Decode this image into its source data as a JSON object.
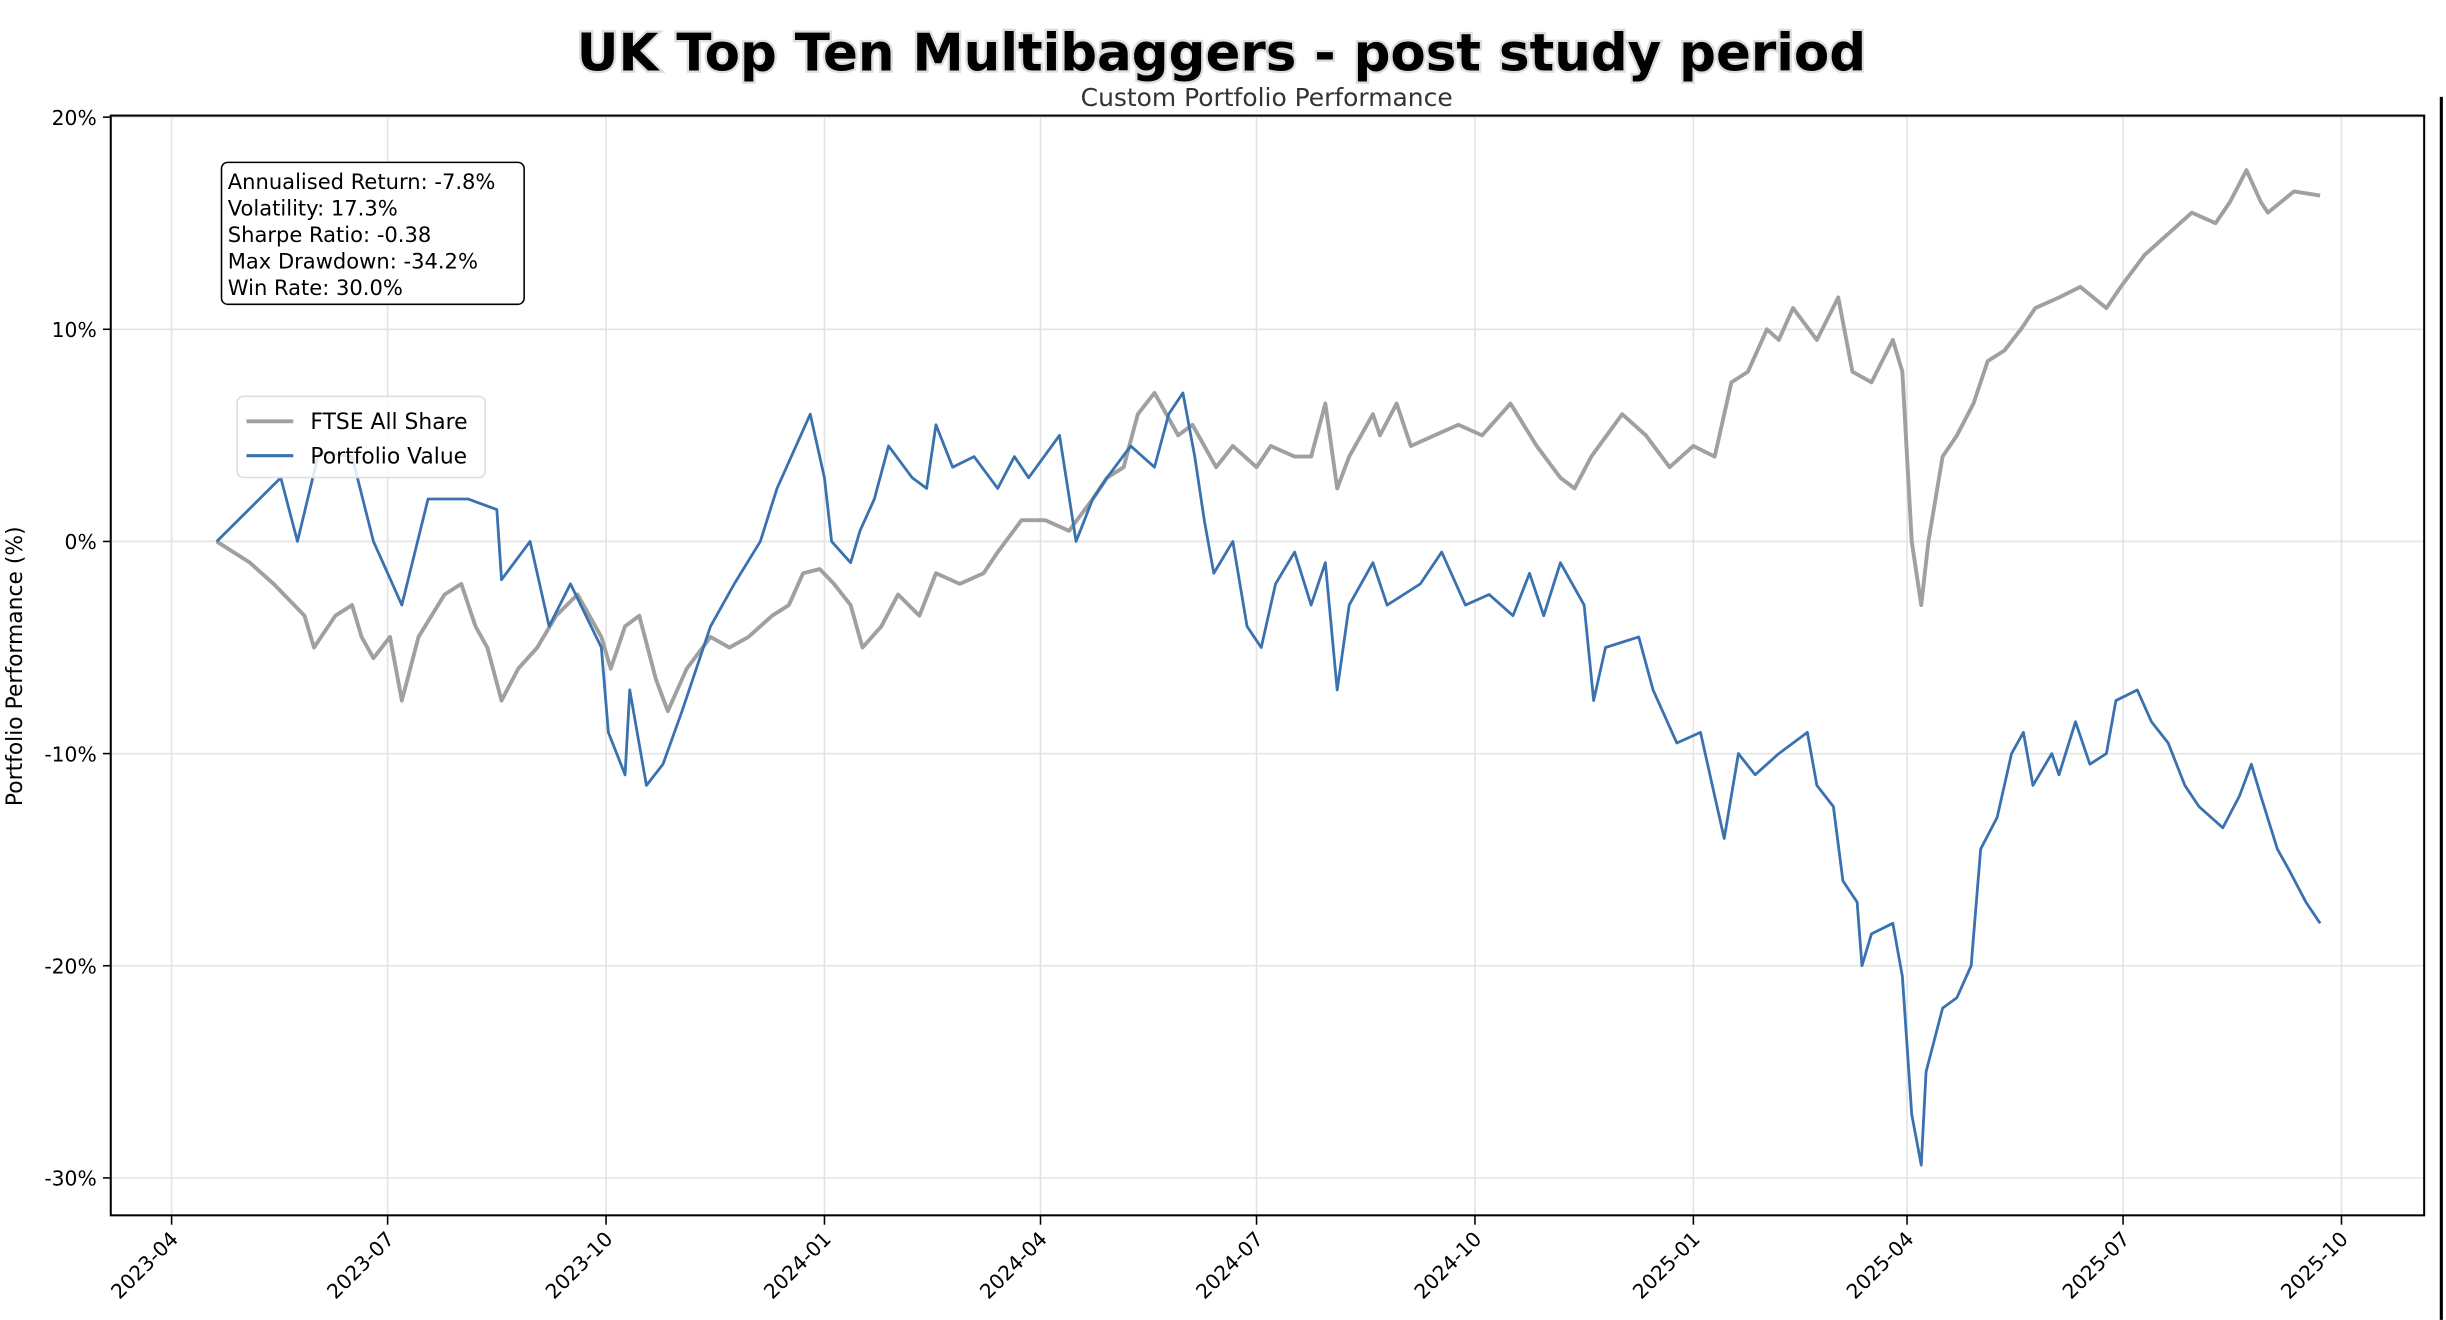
{
  "chart_data": {
    "type": "line",
    "title": "UK Top Ten Multibaggers - post study period",
    "subtitle": "Custom Portfolio Performance",
    "xlabel": "",
    "ylabel": "Portfolio Performance (%)",
    "x_origin_date": "2023-04-01",
    "x_unit": "days since origin",
    "ylim": [
      -32.0,
      20.0
    ],
    "grid": true,
    "legend_position": "upper-left",
    "y_ticks": [
      {
        "value": 20,
        "label": "20%"
      },
      {
        "value": 10,
        "label": "10%"
      },
      {
        "value": 0,
        "label": "0%"
      },
      {
        "value": -10,
        "label": "-10%"
      },
      {
        "value": -20,
        "label": "-20%"
      },
      {
        "value": -30,
        "label": "-30%"
      }
    ],
    "x_ticks": [
      {
        "day": 0,
        "label": "2023-04"
      },
      {
        "day": 91,
        "label": "2023-07"
      },
      {
        "day": 183,
        "label": "2023-10"
      },
      {
        "day": 275,
        "label": "2024-01"
      },
      {
        "day": 366,
        "label": "2024-04"
      },
      {
        "day": 457,
        "label": "2024-07"
      },
      {
        "day": 549,
        "label": "2024-10"
      },
      {
        "day": 641,
        "label": "2025-01"
      },
      {
        "day": 731,
        "label": "2025-04"
      },
      {
        "day": 822,
        "label": "2025-07"
      },
      {
        "day": 914,
        "label": "2025-10"
      }
    ],
    "series": [
      {
        "name": "FTSE All Share",
        "color": "#a0a0a0",
        "points": [
          [
            19,
            0
          ],
          [
            33,
            -1
          ],
          [
            43,
            -2
          ],
          [
            56,
            -3.5
          ],
          [
            60,
            -5
          ],
          [
            69,
            -3.5
          ],
          [
            76,
            -3
          ],
          [
            80,
            -4.5
          ],
          [
            85,
            -5.5
          ],
          [
            92,
            -4.5
          ],
          [
            97,
            -7.5
          ],
          [
            104,
            -4.5
          ],
          [
            115,
            -2.5
          ],
          [
            122,
            -2
          ],
          [
            128,
            -4
          ],
          [
            133,
            -5
          ],
          [
            139,
            -7.5
          ],
          [
            146,
            -6
          ],
          [
            154,
            -5
          ],
          [
            162,
            -3.5
          ],
          [
            171,
            -2.5
          ],
          [
            181,
            -4.5
          ],
          [
            185,
            -6
          ],
          [
            191,
            -4
          ],
          [
            197,
            -3.5
          ],
          [
            204,
            -6.5
          ],
          [
            209,
            -8
          ],
          [
            217,
            -6
          ],
          [
            227,
            -4.5
          ],
          [
            235,
            -5
          ],
          [
            243,
            -4.5
          ],
          [
            253,
            -3.5
          ],
          [
            260,
            -3
          ],
          [
            266,
            -1.5
          ],
          [
            273,
            -1.3
          ],
          [
            279,
            -2
          ],
          [
            286,
            -3
          ],
          [
            291,
            -5
          ],
          [
            299,
            -4
          ],
          [
            306,
            -2.5
          ],
          [
            315,
            -3.5
          ],
          [
            322,
            -1.5
          ],
          [
            332,
            -2
          ],
          [
            342,
            -1.5
          ],
          [
            348,
            -0.5
          ],
          [
            358,
            1
          ],
          [
            368,
            1
          ],
          [
            378,
            0.5
          ],
          [
            388,
            2
          ],
          [
            394,
            3
          ],
          [
            401,
            3.5
          ],
          [
            407,
            6
          ],
          [
            414,
            7
          ],
          [
            424,
            5
          ],
          [
            430,
            5.5
          ],
          [
            440,
            3.5
          ],
          [
            447,
            4.5
          ],
          [
            457,
            3.5
          ],
          [
            463,
            4.5
          ],
          [
            473,
            4
          ],
          [
            480,
            4
          ],
          [
            486,
            6.5
          ],
          [
            491,
            2.5
          ],
          [
            496,
            4
          ],
          [
            506,
            6
          ],
          [
            509,
            5
          ],
          [
            516,
            6.5
          ],
          [
            522,
            4.5
          ],
          [
            532,
            5
          ],
          [
            542,
            5.5
          ],
          [
            552,
            5
          ],
          [
            564,
            6.5
          ],
          [
            575,
            4.5
          ],
          [
            585,
            3
          ],
          [
            591,
            2.5
          ],
          [
            598,
            4
          ],
          [
            611,
            6
          ],
          [
            621,
            5
          ],
          [
            631,
            3.5
          ],
          [
            641,
            4.5
          ],
          [
            650,
            4
          ],
          [
            657,
            7.5
          ],
          [
            664,
            8
          ],
          [
            672,
            10
          ],
          [
            677,
            9.5
          ],
          [
            683,
            11
          ],
          [
            693,
            9.5
          ],
          [
            702,
            11.5
          ],
          [
            708,
            8
          ],
          [
            716,
            7.5
          ],
          [
            725,
            9.5
          ],
          [
            729,
            8
          ],
          [
            733,
            0
          ],
          [
            737,
            -3
          ],
          [
            740,
            0
          ],
          [
            746,
            4
          ],
          [
            752,
            5
          ],
          [
            759,
            6.5
          ],
          [
            765,
            8.5
          ],
          [
            772,
            9
          ],
          [
            779,
            10
          ],
          [
            785,
            11
          ],
          [
            795,
            11.5
          ],
          [
            804,
            12
          ],
          [
            815,
            11
          ],
          [
            821,
            12
          ],
          [
            831,
            13.5
          ],
          [
            841,
            14.5
          ],
          [
            851,
            15.5
          ],
          [
            861,
            15
          ],
          [
            867,
            16
          ],
          [
            874,
            17.5
          ],
          [
            880,
            16
          ],
          [
            883,
            15.5
          ],
          [
            894,
            16.5
          ],
          [
            905,
            16.3
          ]
        ]
      },
      {
        "name": "Portfolio Value",
        "color": "#3a72b0",
        "points": [
          [
            19,
            0
          ],
          [
            46,
            3
          ],
          [
            53,
            0
          ],
          [
            62,
            4.2
          ],
          [
            76,
            4
          ],
          [
            85,
            0
          ],
          [
            97,
            -3
          ],
          [
            108,
            2
          ],
          [
            125,
            2
          ],
          [
            137,
            1.5
          ],
          [
            139,
            -1.8
          ],
          [
            151,
            0
          ],
          [
            159,
            -4
          ],
          [
            168,
            -2
          ],
          [
            181,
            -5
          ],
          [
            184,
            -9
          ],
          [
            191,
            -11
          ],
          [
            193,
            -7
          ],
          [
            200,
            -11.5
          ],
          [
            207,
            -10.5
          ],
          [
            215,
            -8
          ],
          [
            227,
            -4
          ],
          [
            237,
            -2
          ],
          [
            248,
            0
          ],
          [
            255,
            2.5
          ],
          [
            263,
            4.5
          ],
          [
            269,
            6
          ],
          [
            275,
            3
          ],
          [
            278,
            0
          ],
          [
            286,
            -1
          ],
          [
            290,
            0.5
          ],
          [
            296,
            2
          ],
          [
            302,
            4.5
          ],
          [
            312,
            3
          ],
          [
            318,
            2.5
          ],
          [
            322,
            5.5
          ],
          [
            329,
            3.5
          ],
          [
            338,
            4
          ],
          [
            348,
            2.5
          ],
          [
            355,
            4
          ],
          [
            361,
            3
          ],
          [
            374,
            5
          ],
          [
            381,
            0
          ],
          [
            388,
            2
          ],
          [
            394,
            3
          ],
          [
            404,
            4.5
          ],
          [
            414,
            3.5
          ],
          [
            420,
            6
          ],
          [
            426,
            7
          ],
          [
            431,
            4
          ],
          [
            435,
            1
          ],
          [
            439,
            -1.5
          ],
          [
            447,
            0
          ],
          [
            453,
            -4
          ],
          [
            459,
            -5
          ],
          [
            465,
            -2
          ],
          [
            473,
            -0.5
          ],
          [
            480,
            -3
          ],
          [
            486,
            -1
          ],
          [
            491,
            -7
          ],
          [
            496,
            -3
          ],
          [
            506,
            -1
          ],
          [
            512,
            -3
          ],
          [
            526,
            -2
          ],
          [
            535,
            -0.5
          ],
          [
            545,
            -3
          ],
          [
            555,
            -2.5
          ],
          [
            565,
            -3.5
          ],
          [
            572,
            -1.5
          ],
          [
            578,
            -3.5
          ],
          [
            585,
            -1
          ],
          [
            595,
            -3
          ],
          [
            599,
            -7.5
          ],
          [
            604,
            -5
          ],
          [
            618,
            -4.5
          ],
          [
            624,
            -7
          ],
          [
            634,
            -9.5
          ],
          [
            644,
            -9
          ],
          [
            650,
            -12
          ],
          [
            654,
            -14
          ],
          [
            660,
            -10
          ],
          [
            667,
            -11
          ],
          [
            677,
            -10
          ],
          [
            689,
            -9
          ],
          [
            693,
            -11.5
          ],
          [
            700,
            -12.5
          ],
          [
            704,
            -16
          ],
          [
            710,
            -17
          ],
          [
            712,
            -20
          ],
          [
            716,
            -18.5
          ],
          [
            725,
            -18
          ],
          [
            729,
            -20.5
          ],
          [
            733,
            -27
          ],
          [
            737,
            -29.4
          ],
          [
            739,
            -25
          ],
          [
            746,
            -22
          ],
          [
            752,
            -21.5
          ],
          [
            758,
            -20
          ],
          [
            762,
            -14.5
          ],
          [
            769,
            -13
          ],
          [
            775,
            -10
          ],
          [
            780,
            -9
          ],
          [
            784,
            -11.5
          ],
          [
            792,
            -10
          ],
          [
            795,
            -11
          ],
          [
            802,
            -8.5
          ],
          [
            808,
            -10.5
          ],
          [
            815,
            -10
          ],
          [
            819,
            -7.5
          ],
          [
            828,
            -7
          ],
          [
            834,
            -8.5
          ],
          [
            841,
            -9.5
          ],
          [
            848,
            -11.5
          ],
          [
            854,
            -12.5
          ],
          [
            864,
            -13.5
          ],
          [
            871,
            -12
          ],
          [
            876,
            -10.5
          ],
          [
            880,
            -12
          ],
          [
            887,
            -14.5
          ],
          [
            892,
            -15.5
          ],
          [
            899,
            -17
          ],
          [
            905,
            -18
          ]
        ]
      }
    ],
    "stats": [
      "Annualised Return: -7.8%",
      "Volatility: 17.3%",
      "Sharpe Ratio: -0.38",
      "Max Drawdown: -34.2%",
      "Win Rate: 30.0%"
    ]
  }
}
